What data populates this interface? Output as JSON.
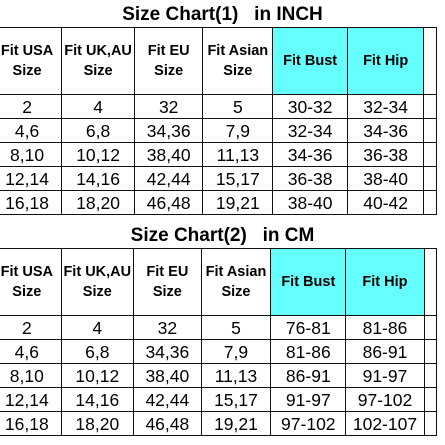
{
  "chart1": {
    "title": "Size Chart(1)   in INCH",
    "headers": [
      "Fit USA Size",
      "Fit UK,AU Size",
      "Fit EU Size",
      "Fit Asian Size",
      "Fit Bust",
      "Fit Hip"
    ],
    "rows": [
      [
        "2",
        "4",
        "32",
        "5",
        "30-32",
        "32-34"
      ],
      [
        "4,6",
        "6,8",
        "34,36",
        "7,9",
        "32-34",
        "34-36"
      ],
      [
        "8,10",
        "10,12",
        "38,40",
        "11,13",
        "34-36",
        "36-38"
      ],
      [
        "12,14",
        "14,16",
        "42,44",
        "15,17",
        "36-38",
        "38-40"
      ],
      [
        "16,18",
        "18,20",
        "46,48",
        "19,21",
        "38-40",
        "40-42"
      ]
    ]
  },
  "chart2": {
    "title": "Size Chart(2)   in CM",
    "headers": [
      "Fit USA Size",
      "Fit UK,AU Size",
      "Fit EU Size",
      "Fit Asian Size",
      "Fit Bust",
      "Fit Hip"
    ],
    "rows": [
      [
        "2",
        "4",
        "32",
        "5",
        "76-81",
        "81-86"
      ],
      [
        "4,6",
        "6,8",
        "34,36",
        "7,9",
        "81-86",
        "86-91"
      ],
      [
        "8,10",
        "10,12",
        "38,40",
        "11,13",
        "86-91",
        "91-97"
      ],
      [
        "12,14",
        "14,16",
        "42,44",
        "15,17",
        "91-97",
        "97-102"
      ],
      [
        "16,18",
        "18,20",
        "46,48",
        "19,21",
        "97-102",
        "102-107"
      ]
    ]
  },
  "colors": {
    "highlight": "#66ffff",
    "border": "#111111"
  }
}
